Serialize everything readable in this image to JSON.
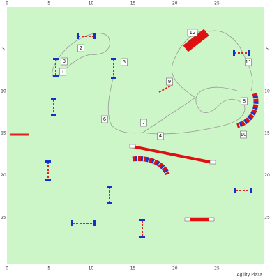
{
  "axis": {
    "x_ticks": [
      0,
      5,
      10,
      15,
      20,
      25
    ],
    "y_ticks": [
      5,
      10,
      15,
      20,
      25
    ]
  },
  "obstacle_labels": [
    "1",
    "2",
    "3",
    "4",
    "5",
    "6",
    "7",
    "8",
    "9",
    "10",
    "11",
    "12"
  ],
  "footer": "Agility Plaza"
}
